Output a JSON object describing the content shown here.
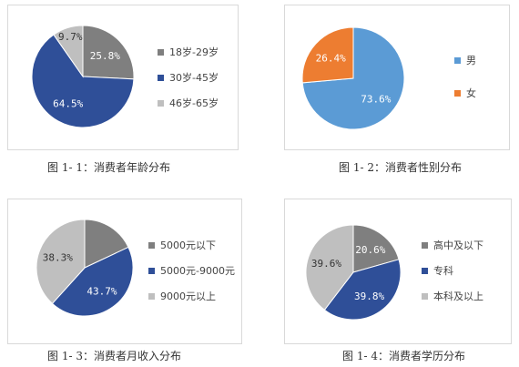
{
  "chart_data": [
    {
      "type": "pie",
      "categories": [
        "18岁-29岁",
        "30岁-45岁",
        "46岁-65岁"
      ],
      "values": [
        25.8,
        64.5,
        9.7
      ],
      "value_labels": [
        "25.8%",
        "64.5%",
        "9.7%"
      ],
      "colors": [
        "#7f7f7f",
        "#2f4f98",
        "#bfbfbf"
      ],
      "legend_position": "right",
      "caption": "图 1- 1：消费者年龄分布"
    },
    {
      "type": "pie",
      "categories": [
        "男",
        "女"
      ],
      "values": [
        73.6,
        26.4
      ],
      "value_labels": [
        "73.6%",
        "26.4%"
      ],
      "colors": [
        "#5b9bd5",
        "#ed7d31"
      ],
      "legend_position": "right",
      "caption": "图 1- 2：消费者性别分布"
    },
    {
      "type": "pie",
      "categories": [
        "5000元以下",
        "5000元-9000元",
        "9000元以上"
      ],
      "values": [
        18.0,
        43.7,
        38.3
      ],
      "value_labels": [
        "",
        "43.7%",
        "38.3%"
      ],
      "colors": [
        "#7f7f7f",
        "#2f4f98",
        "#bfbfbf"
      ],
      "legend_position": "right",
      "caption": "图 1- 3：消费者月收入分布"
    },
    {
      "type": "pie",
      "categories": [
        "高中及以下",
        "专科",
        "本科及以上"
      ],
      "values": [
        20.6,
        39.8,
        39.6
      ],
      "value_labels": [
        "20.6%",
        "39.8%",
        "39.6%"
      ],
      "colors": [
        "#7f7f7f",
        "#2f4f98",
        "#bfbfbf"
      ],
      "legend_position": "right",
      "caption": "图 1- 4：消费者学历分布"
    }
  ]
}
